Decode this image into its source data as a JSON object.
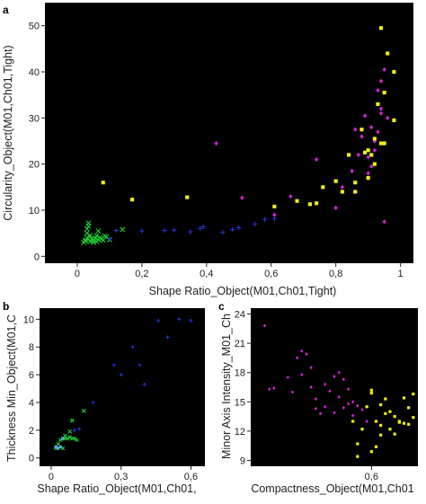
{
  "chart_data": [
    {
      "type": "scatter",
      "panel": "a",
      "xlabel": "Shape Ratio_Object(M01,Ch01,Tight)",
      "ylabel": "Circularity_Object(M01,Ch01,Tight)",
      "xlim": [
        -0.1,
        1.04
      ],
      "ylim": [
        -1.5,
        55
      ],
      "xticks": [
        "0",
        "0,2",
        "0,4",
        "0,6",
        "0,8",
        "1"
      ],
      "xtick_values": [
        0,
        0.2,
        0.4,
        0.6,
        0.8,
        1.0
      ],
      "yticks": [
        "0",
        "10",
        "20",
        "30",
        "40",
        "50"
      ],
      "ytick_values": [
        0,
        10,
        20,
        30,
        40,
        50
      ],
      "grid": false,
      "series": [
        {
          "color": "#22cc33",
          "marker": "x",
          "points": [
            [
              0.02,
              3.0
            ],
            [
              0.025,
              3.5
            ],
            [
              0.03,
              4.0
            ],
            [
              0.03,
              5.0
            ],
            [
              0.03,
              6.0
            ],
            [
              0.035,
              6.5
            ],
            [
              0.035,
              7.2
            ],
            [
              0.04,
              4.5
            ],
            [
              0.045,
              3.8
            ],
            [
              0.05,
              3.5
            ],
            [
              0.055,
              4.0
            ],
            [
              0.06,
              3.2
            ],
            [
              0.065,
              3.6
            ],
            [
              0.07,
              4.0
            ],
            [
              0.08,
              3.5
            ],
            [
              0.09,
              4.2
            ],
            [
              0.1,
              3.6
            ],
            [
              0.065,
              5.5
            ],
            [
              0.05,
              3.0
            ],
            [
              0.025,
              3.3
            ],
            [
              0.035,
              3.7
            ],
            [
              0.04,
              3.2
            ],
            [
              0.06,
              4.5
            ],
            [
              0.075,
              3.8
            ],
            [
              0.085,
              4.4
            ],
            [
              0.14,
              5.8
            ]
          ]
        },
        {
          "color": "#2233dd",
          "marker": "+",
          "points": [
            [
              0.12,
              5.6
            ],
            [
              0.2,
              5.5
            ],
            [
              0.27,
              5.6
            ],
            [
              0.3,
              5.7
            ],
            [
              0.35,
              5.3
            ],
            [
              0.38,
              6.0
            ],
            [
              0.39,
              6.4
            ],
            [
              0.45,
              5.2
            ],
            [
              0.48,
              5.8
            ],
            [
              0.5,
              6.2
            ],
            [
              0.55,
              7.0
            ],
            [
              0.58,
              8.0
            ],
            [
              0.61,
              8.2
            ],
            [
              0.1,
              3.8
            ]
          ]
        },
        {
          "color": "#dd22dd",
          "marker": "diamond",
          "points": [
            [
              0.43,
              24.5
            ],
            [
              0.51,
              12.7
            ],
            [
              0.61,
              9.0
            ],
            [
              0.66,
              13.0
            ],
            [
              0.74,
              21.0
            ],
            [
              0.8,
              10.5
            ],
            [
              0.82,
              15.0
            ],
            [
              0.85,
              18.5
            ],
            [
              0.86,
              27.5
            ],
            [
              0.87,
              22.0
            ],
            [
              0.88,
              26.0
            ],
            [
              0.89,
              30.5
            ],
            [
              0.9,
              21.5
            ],
            [
              0.9,
              18.0
            ],
            [
              0.91,
              28.0
            ],
            [
              0.91,
              19.5
            ],
            [
              0.92,
              25.0
            ],
            [
              0.93,
              36.0
            ],
            [
              0.94,
              38.0
            ],
            [
              0.94,
              32.0
            ],
            [
              0.95,
              40.5
            ],
            [
              0.96,
              30.0
            ],
            [
              0.95,
              7.5
            ],
            [
              0.92,
              23.0
            ],
            [
              0.93,
              27.0
            ],
            [
              0.94,
              31.0
            ]
          ]
        },
        {
          "color": "#eeee11",
          "marker": "square",
          "points": [
            [
              0.08,
              16.0
            ],
            [
              0.17,
              12.3
            ],
            [
              0.34,
              12.8
            ],
            [
              0.61,
              10.8
            ],
            [
              0.68,
              12.0
            ],
            [
              0.72,
              11.3
            ],
            [
              0.74,
              11.5
            ],
            [
              0.76,
              15.0
            ],
            [
              0.8,
              16.3
            ],
            [
              0.82,
              14.0
            ],
            [
              0.84,
              22.0
            ],
            [
              0.86,
              16.0
            ],
            [
              0.88,
              27.5
            ],
            [
              0.89,
              22.5
            ],
            [
              0.9,
              23.0
            ],
            [
              0.91,
              22.0
            ],
            [
              0.92,
              20.0
            ],
            [
              0.93,
              33.0
            ],
            [
              0.94,
              49.5
            ],
            [
              0.95,
              35.5
            ],
            [
              0.96,
              44.0
            ],
            [
              0.98,
              40.0
            ],
            [
              0.98,
              29.5
            ],
            [
              0.95,
              24.5
            ],
            [
              0.86,
              14.0
            ],
            [
              0.9,
              17.0
            ],
            [
              0.92,
              25.5
            ],
            [
              0.94,
              24.5
            ]
          ]
        }
      ]
    },
    {
      "type": "scatter",
      "panel": "b",
      "xlabel": "Shape Ratio_Object(M01,Ch01,",
      "ylabel": "Thickness Min_Object(M01,C",
      "xlim": [
        -0.05,
        0.66
      ],
      "ylim": [
        -0.6,
        10.8
      ],
      "xticks": [
        "0",
        "0,3",
        "0,6"
      ],
      "xtick_values": [
        0,
        0.3,
        0.6
      ],
      "yticks": [
        "0",
        "2",
        "4",
        "6",
        "8",
        "10"
      ],
      "ytick_values": [
        0,
        2,
        4,
        6,
        8,
        10
      ],
      "grid": false,
      "series": [
        {
          "color": "#22cc33",
          "marker": "x",
          "points": [
            [
              0.02,
              0.7
            ],
            [
              0.03,
              1.0
            ],
            [
              0.04,
              1.3
            ],
            [
              0.05,
              1.4
            ],
            [
              0.06,
              1.4
            ],
            [
              0.07,
              1.4
            ],
            [
              0.08,
              1.5
            ],
            [
              0.09,
              1.4
            ],
            [
              0.1,
              1.4
            ],
            [
              0.11,
              1.3
            ],
            [
              0.05,
              0.7
            ],
            [
              0.06,
              1.6
            ],
            [
              0.09,
              2.7
            ],
            [
              0.14,
              3.4
            ],
            [
              0.08,
              1.9
            ]
          ]
        },
        {
          "color": "#55aadd",
          "marker": "square",
          "points": [
            [
              0.02,
              0.8
            ],
            [
              0.03,
              0.7
            ],
            [
              0.04,
              0.8
            ],
            [
              0.05,
              1.4
            ]
          ]
        },
        {
          "color": "#2233dd",
          "marker": "+",
          "points": [
            [
              0.1,
              2.0
            ],
            [
              0.12,
              2.1
            ],
            [
              0.18,
              4.0
            ],
            [
              0.27,
              6.7
            ],
            [
              0.3,
              6.0
            ],
            [
              0.35,
              8.0
            ],
            [
              0.38,
              6.7
            ],
            [
              0.4,
              5.3
            ],
            [
              0.46,
              9.9
            ],
            [
              0.5,
              8.7
            ],
            [
              0.55,
              10.0
            ],
            [
              0.6,
              9.9
            ]
          ]
        }
      ]
    },
    {
      "type": "scatter",
      "panel": "c",
      "xlabel": "Compactness_Object(M01,Ch01",
      "ylabel": "Minor Axis Intensity_M01_Ch",
      "xlim": [
        0.34,
        0.7
      ],
      "ylim": [
        8.4,
        24.6
      ],
      "xticks": [
        "0,6"
      ],
      "xtick_values": [
        0.6
      ],
      "yticks": [
        "9",
        "12",
        "15",
        "18",
        "21",
        "24"
      ],
      "ytick_values": [
        9,
        12,
        15,
        18,
        21,
        24
      ],
      "grid": false,
      "series": [
        {
          "color": "#dd22dd",
          "marker": "diamond",
          "points": [
            [
              0.37,
              22.8
            ],
            [
              0.38,
              16.3
            ],
            [
              0.39,
              16.4
            ],
            [
              0.42,
              17.5
            ],
            [
              0.43,
              16.0
            ],
            [
              0.44,
              19.5
            ],
            [
              0.45,
              20.2
            ],
            [
              0.46,
              19.9
            ],
            [
              0.47,
              18.5
            ],
            [
              0.48,
              15.3
            ],
            [
              0.48,
              14.3
            ],
            [
              0.49,
              13.8
            ],
            [
              0.5,
              14.5
            ],
            [
              0.51,
              16.1
            ],
            [
              0.52,
              17.6
            ],
            [
              0.53,
              18.0
            ],
            [
              0.54,
              17.3
            ],
            [
              0.55,
              16.3
            ],
            [
              0.56,
              15.0
            ],
            [
              0.56,
              13.6
            ],
            [
              0.55,
              14.8
            ],
            [
              0.47,
              16.5
            ],
            [
              0.5,
              16.8
            ],
            [
              0.53,
              15.5
            ],
            [
              0.57,
              14.6
            ],
            [
              0.58,
              14.2
            ],
            [
              0.45,
              17.8
            ],
            [
              0.52,
              13.9
            ],
            [
              0.59,
              13.0
            ],
            [
              0.54,
              14.4
            ]
          ]
        },
        {
          "color": "#eeee11",
          "marker": "square",
          "points": [
            [
              0.56,
              13.0
            ],
            [
              0.57,
              10.7
            ],
            [
              0.57,
              9.4
            ],
            [
              0.58,
              12.2
            ],
            [
              0.59,
              14.5
            ],
            [
              0.6,
              15.9
            ],
            [
              0.6,
              16.2
            ],
            [
              0.61,
              13.0
            ],
            [
              0.61,
              10.4
            ],
            [
              0.62,
              11.6
            ],
            [
              0.62,
              12.6
            ],
            [
              0.63,
              13.8
            ],
            [
              0.63,
              15.3
            ],
            [
              0.64,
              14.0
            ],
            [
              0.65,
              11.7
            ],
            [
              0.65,
              13.5
            ],
            [
              0.66,
              12.9
            ],
            [
              0.67,
              15.4
            ],
            [
              0.67,
              12.8
            ],
            [
              0.68,
              14.4
            ],
            [
              0.69,
              13.4
            ],
            [
              0.6,
              9.9
            ],
            [
              0.64,
              12.2
            ],
            [
              0.66,
              13.0
            ],
            [
              0.68,
              12.7
            ],
            [
              0.62,
              14.7
            ],
            [
              0.69,
              15.8
            ]
          ]
        }
      ]
    }
  ]
}
